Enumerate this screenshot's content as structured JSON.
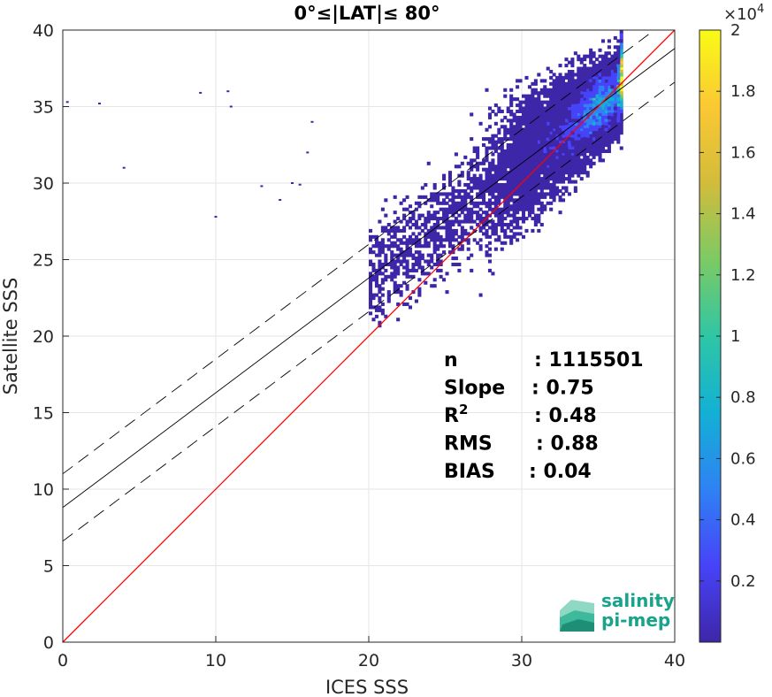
{
  "chart_data": {
    "type": "heatmap",
    "title": "0°≤|LAT|≤ 80°",
    "xlabel": "ICES SSS",
    "ylabel": "Satellite SSS",
    "xlim": [
      0,
      40
    ],
    "ylim": [
      0,
      40
    ],
    "x_ticks": [
      "0",
      "10",
      "20",
      "30",
      "40"
    ],
    "y_ticks": [
      "0",
      "5",
      "10",
      "15",
      "20",
      "25",
      "30",
      "35",
      "40"
    ],
    "grid": true,
    "colorbar": {
      "range": [
        0,
        20000
      ],
      "multiplier_label": "×10",
      "multiplier_exp": "4",
      "ticks": [
        "0.2",
        "0.4",
        "0.6",
        "0.8",
        "1",
        "1.2",
        "1.4",
        "1.6",
        "1.8",
        "2"
      ],
      "colors": [
        "#3e26a8",
        "#4743f8",
        "#2f82f3",
        "#13b0d5",
        "#2fc6a5",
        "#7cca64",
        "#d2bc3b",
        "#fbc833",
        "#f9fb15"
      ]
    },
    "lines": {
      "identity": {
        "slope": 1,
        "intercept": 0,
        "color": "#ff0000"
      },
      "fit": {
        "slope": 0.75,
        "intercept": 8.8,
        "color": "#000000"
      },
      "fit_upper": {
        "slope": 0.75,
        "intercept": 11.0,
        "style": "dashed"
      },
      "fit_lower": {
        "slope": 0.75,
        "intercept": 6.6,
        "style": "dashed"
      }
    },
    "density": {
      "center": [
        33.5,
        33.0
      ],
      "peak": [
        35.2,
        35.2
      ],
      "x_range": [
        18.5,
        37
      ],
      "y_range": [
        18.5,
        40
      ],
      "outliers": [
        [
          0.3,
          35.3
        ],
        [
          2.4,
          35.2
        ],
        [
          4,
          31
        ],
        [
          9,
          35.9
        ],
        [
          10.8,
          36
        ],
        [
          11,
          35
        ],
        [
          13,
          29.8
        ],
        [
          14.2,
          28.9
        ],
        [
          15,
          30
        ],
        [
          15.5,
          29.9
        ],
        [
          16,
          32
        ],
        [
          16.3,
          34
        ],
        [
          10,
          27.8
        ]
      ]
    },
    "stats": [
      {
        "label": "n",
        "value": ": 1115501"
      },
      {
        "label": "Slope",
        "value": ": 0.75"
      },
      {
        "label": "R",
        "sup": "2",
        "value": ": 0.48"
      },
      {
        "label": "RMS",
        "value": ": 0.88"
      },
      {
        "label": "BIAS",
        "value": ": 0.04"
      }
    ]
  },
  "logo": {
    "line1": "salinity",
    "line2": "pi-mep",
    "color": "#1aa38b"
  }
}
